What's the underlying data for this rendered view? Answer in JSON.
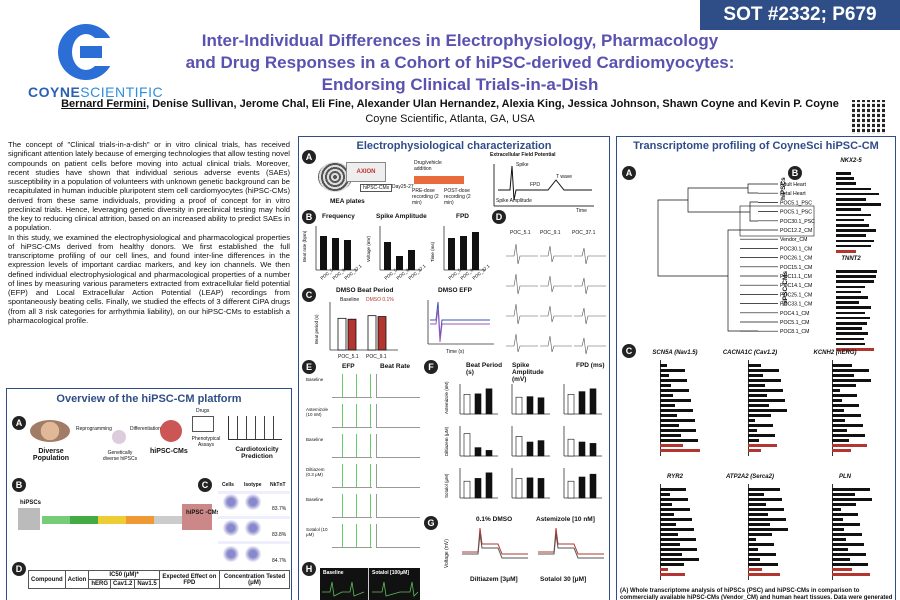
{
  "header": {
    "sot_badge": "SOT #2332; P679",
    "logo": {
      "brand_bold": "COYNE",
      "brand_light": "SCIENTIFIC"
    },
    "title_lines": [
      "Inter-Individual Differences in Electrophysiology, Pharmacology",
      "and Drug Responses in a Cohort of hiPSC-derived Cardiomyocytes:",
      "Endorsing Clinical Trials-in-a-Dish"
    ],
    "first_author": "Bernard Fermini",
    "other_authors": ", Denise Sullivan, Jerome Chal, Eli Fine, Alexander Ulan Hernandez, Alexia King, Jessica Johnson, Shawn Coyne and Kevin P. Coyne",
    "affiliation": "Coyne Scientific, Atlanta, GA, USA"
  },
  "intro": {
    "p1": "The concept of \"Clinical trials-in-a-dish\" or in vitro clinical trials, has received significant attention lately because of emerging technologies that allow testing novel compounds on patient cells before moving into actual clinical trials. Moreover, recent studies have shown that individual serious adverse events (SAEs) susceptibility in a population of volunteers with unknown genetic background can be recapitulated in human inducible pluripotent stem cell cardiomyocytes (hiPSC-CMs) derived from these same individuals, providing a proof of concept for in vitro preclinical trials. Hence, leveraging genetic diversity in preclinical testing may hold the key to reducing clinical attrition, based on an increased ability to predict SAEs in a population.",
    "p2": "In this study, we examined the electrophysiological and pharmacological properties of hiPSC-CMs derived from healthy donors. We first established the full transcriptome profiling of our cell lines, and found inter-line differences in the expression levels of important cardiac markers, and key ion channels. We then defined individual electrophysiological and pharmacological properties of a number of lines by measuring various parameters extracted from extracellular field potential (EFP) and Local Extracellular Action Potential (LEAP) recordings from spontaneously beating cells. Finally, we studied the effects of 3 different CiPA drugs (from all 3 risk categories for arrhythmia liability), on our hiPSC-CMs to establish a pharmacological profile."
  },
  "overview": {
    "title": "Overview of the hiPSC-CM platform",
    "labels": {
      "diverse": "Diverse Population",
      "reprog": "Reprogramming",
      "genetic": "Genetically diverse hiPSCs",
      "diff": "Differentiation",
      "cms": "hiPSC-CMs",
      "drugs": "Drugs",
      "pheno": "Phenotypical Assays",
      "cardio": "Cardiotoxicity Prediction",
      "hipscs": "hiPSCs",
      "hipsc_cms": "hiPSC -CMs",
      "facs_cols": [
        "Cells",
        "Isotype",
        "NkTnT"
      ],
      "facs_vals": [
        "83.7%",
        "83.8%",
        "84.7%"
      ],
      "tbl_compound": "Compound",
      "tbl_action": "Action",
      "tbl_ic50": "IC50 (μM)*",
      "tbl_herg": "hERG",
      "tbl_cav": "Cav1.2",
      "tbl_nav": "Nav1.5",
      "tbl_expected": "Expected Effect on FPD",
      "tbl_conc": "Concentration Tested (μM)"
    }
  },
  "electro": {
    "title": "Electrophysiological characterization",
    "a_labels": {
      "axion": "AXION",
      "mea": "MEA plates",
      "cms": "hiPSC-CMs",
      "day": "Day25-27",
      "drug_add": "Drug/vehicle addition",
      "pre": "PRE-dose recording (2 min)",
      "post": "POST-dose recording (2 min)",
      "efp": "Extracellular Field Potential",
      "spike": "Spike",
      "t_wave": "T wave",
      "fpd": "FPD",
      "amp": "Spike Amplitude",
      "time": "Time",
      "voltage": "Voltage"
    },
    "b_titles": [
      "Frequency",
      "Spike Amplitude",
      "FPD"
    ],
    "b_ylabels": [
      "Beat rate (bpm)",
      "Voltage (mV)",
      "Time (ms)"
    ],
    "b_lines": [
      "POC_5.1",
      "POC_9.1",
      "POC_37.1"
    ],
    "c_titles": [
      "DMSO Beat Period",
      "DMSO EFP"
    ],
    "c_legend": [
      "Baseline",
      "DMSO 0.1%"
    ],
    "c_x": [
      "POC_5.1",
      "POC_9.1"
    ],
    "c_ylabel": "Beat period (s)",
    "c_efp_xlabel": "Time (s)",
    "c_efp_ylabel": "Voltage (mV)",
    "d_cols": [
      "POC_5.1",
      "POC_9.1",
      "POC_37.1"
    ],
    "e_titles": [
      "EFP",
      "Beat Rate"
    ],
    "e_rows": [
      "Baseline",
      "Astemizole (10 nM)",
      "Baseline",
      "Diltiazem (0.3 μM)",
      "Baseline",
      "Sotalol (10 μM)"
    ],
    "f_titles": [
      "Beat Period (s)",
      "Spike Amplitude (mV)",
      "FPD (ms)"
    ],
    "f_rows": [
      "Astemizole (nM)",
      "Diltiazem (μM)",
      "Sotalol (μM)"
    ],
    "g_titles": [
      "0.1% DMSO",
      "Astemizole [10 nM]",
      "Diltiazem [3μM]",
      "Sotalol 30 [μM]"
    ],
    "g_ylabel": "Voltage (mV)",
    "h_titles": [
      "Baseline",
      "Sotalol [100μM]"
    ]
  },
  "transcriptome": {
    "title": "Transcriptome profiling of CoyneSci hiPSC-CM",
    "tree_leaves": [
      "Adult Heart",
      "Fetal Heart",
      "POC5.1_PSC",
      "POC5.1_PSC",
      "POC30.1_PSC",
      "POC12.2_CM",
      "Vendor_CM",
      "POC30.1_CM",
      "POC26.1_CM",
      "POC15.1_CM",
      "POC11.1_CM",
      "POC14.1_CM",
      "POC25.1_CM",
      "POC33.1_CM",
      "POC4.1_CM",
      "POC5.1_CM",
      "POC8.1_CM"
    ],
    "group_hipscs": "hiPSCs",
    "group_cms": "hiPSC-CMs",
    "b_genes": [
      "NKX2-5",
      "TNNT2"
    ],
    "c_genes": [
      "SCN5A (Nav1.5)",
      "CACNA1C (Cav1.2)",
      "KCNH2 (hERG)",
      "RYR2",
      "ATP2A2 (Serca2)",
      "PLN"
    ],
    "footnote": "(A) Whole transcriptome analysis of hiPSCs (PSC) and hiPSC-CMs in comparison to commercially available hiPSC-CMs (Vendor_CM) and human heart tissues. Data were generated"
  },
  "colors": {
    "accent": "#2f4e87",
    "title": "#5a52b0",
    "red": "#b3352f",
    "trace_green": "#5cbf5c"
  }
}
